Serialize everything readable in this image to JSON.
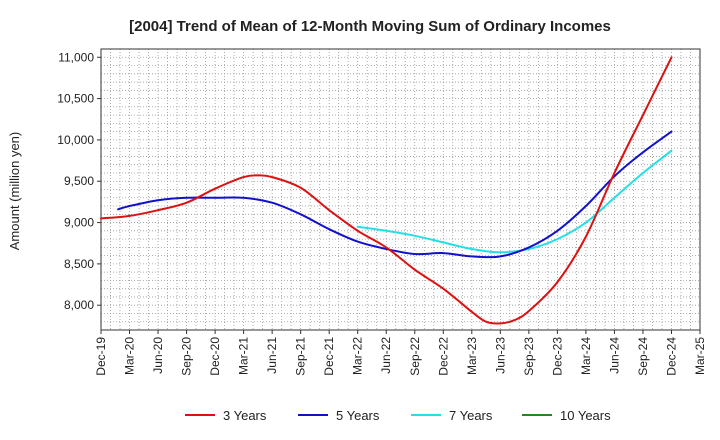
{
  "chart_data": {
    "type": "line",
    "title": "[2004]  Trend of Mean of 12-Month Moving Sum of Ordinary Incomes",
    "xlabel": "",
    "ylabel": "Amount (million yen)",
    "ylim": [
      7700,
      11100
    ],
    "yticks": [
      8000,
      8500,
      9000,
      9500,
      10000,
      10500,
      11000
    ],
    "ytick_labels": [
      "8,000",
      "8,500",
      "9,000",
      "9,500",
      "10,000",
      "10,500",
      "11,000"
    ],
    "x_categories": [
      "Dec-19",
      "Mar-20",
      "Jun-20",
      "Sep-20",
      "Dec-20",
      "Mar-21",
      "Jun-21",
      "Sep-21",
      "Dec-21",
      "Mar-22",
      "Jun-22",
      "Sep-22",
      "Dec-22",
      "Mar-23",
      "Jun-23",
      "Sep-23",
      "Dec-23",
      "Mar-24",
      "Jun-24",
      "Sep-24",
      "Dec-24",
      "Mar-25"
    ],
    "grid": true,
    "legend_position": "bottom",
    "series": [
      {
        "name": "3 Years",
        "color": "#dd1111",
        "points": [
          [
            0,
            9050
          ],
          [
            1,
            9080
          ],
          [
            2,
            9150
          ],
          [
            3,
            9240
          ],
          [
            4,
            9410
          ],
          [
            5,
            9550
          ],
          [
            5.5,
            9570
          ],
          [
            6,
            9550
          ],
          [
            7,
            9420
          ],
          [
            8,
            9150
          ],
          [
            9,
            8900
          ],
          [
            10,
            8700
          ],
          [
            11,
            8430
          ],
          [
            12,
            8200
          ],
          [
            13,
            7920
          ],
          [
            13.5,
            7800
          ],
          [
            14,
            7780
          ],
          [
            14.5,
            7820
          ],
          [
            15,
            7930
          ],
          [
            16,
            8280
          ],
          [
            17,
            8830
          ],
          [
            18,
            9600
          ],
          [
            19,
            10300
          ],
          [
            20,
            11000
          ]
        ]
      },
      {
        "name": "5 Years",
        "color": "#1111cc",
        "points": [
          [
            0.6,
            9160
          ],
          [
            1,
            9200
          ],
          [
            2,
            9270
          ],
          [
            3,
            9300
          ],
          [
            4,
            9300
          ],
          [
            5,
            9300
          ],
          [
            6,
            9240
          ],
          [
            7,
            9100
          ],
          [
            8,
            8920
          ],
          [
            9,
            8770
          ],
          [
            10,
            8680
          ],
          [
            11,
            8620
          ],
          [
            12,
            8630
          ],
          [
            13,
            8590
          ],
          [
            14,
            8590
          ],
          [
            15,
            8700
          ],
          [
            16,
            8900
          ],
          [
            17,
            9200
          ],
          [
            18,
            9560
          ],
          [
            19,
            9850
          ],
          [
            20,
            10100
          ]
        ]
      },
      {
        "name": "7 Years",
        "color": "#22e0e6",
        "points": [
          [
            9,
            8950
          ],
          [
            10,
            8900
          ],
          [
            11,
            8840
          ],
          [
            12,
            8760
          ],
          [
            13,
            8680
          ],
          [
            14,
            8640
          ],
          [
            15,
            8680
          ],
          [
            16,
            8800
          ],
          [
            17,
            9000
          ],
          [
            18,
            9300
          ],
          [
            19,
            9600
          ],
          [
            20,
            9870
          ]
        ]
      },
      {
        "name": "10 Years",
        "color": "#228822",
        "points": []
      }
    ]
  }
}
